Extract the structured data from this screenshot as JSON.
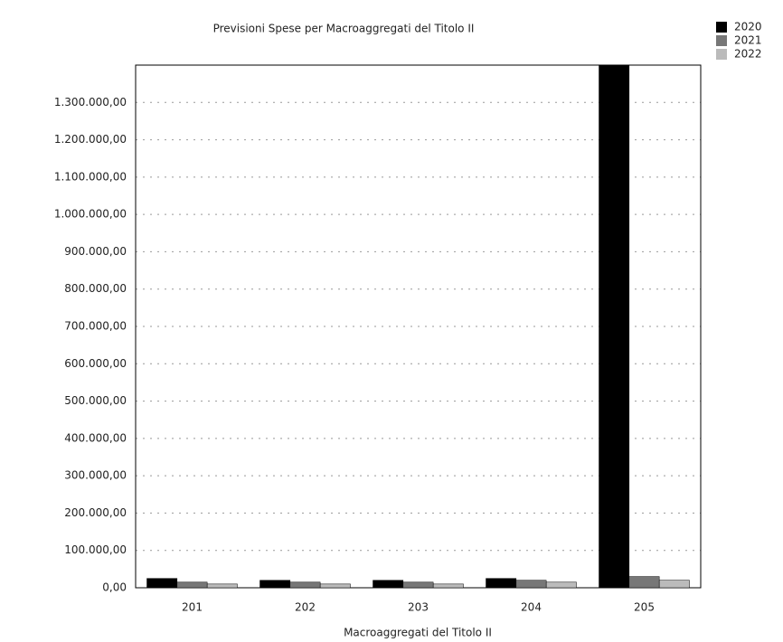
{
  "chart_data": {
    "type": "bar",
    "title": "Previsioni Spese per Macroaggregati del Titolo II",
    "x_label": "Macroaggregati del Titolo II",
    "categories": [
      "201",
      "202",
      "203",
      "204",
      "205"
    ],
    "series": [
      {
        "name": "2020",
        "color": "#000000",
        "values": [
          25000,
          20000,
          20000,
          25000,
          1400000
        ]
      },
      {
        "name": "2021",
        "color": "#777777",
        "values": [
          15000,
          15000,
          15000,
          20000,
          30000
        ]
      },
      {
        "name": "2022",
        "color": "#bbbbbb",
        "values": [
          10000,
          10000,
          10000,
          15000,
          20000
        ]
      }
    ],
    "ylim": [
      0,
      1400000
    ],
    "yticks": [
      {
        "value": 0,
        "label": "0,00"
      },
      {
        "value": 100000,
        "label": "100.000,00"
      },
      {
        "value": 200000,
        "label": "200.000,00"
      },
      {
        "value": 300000,
        "label": "300.000,00"
      },
      {
        "value": 400000,
        "label": "400.000,00"
      },
      {
        "value": 500000,
        "label": "500.000,00"
      },
      {
        "value": 600000,
        "label": "600.000,00"
      },
      {
        "value": 700000,
        "label": "700.000,00"
      },
      {
        "value": 800000,
        "label": "800.000,00"
      },
      {
        "value": 900000,
        "label": "900.000,00"
      },
      {
        "value": 1000000,
        "label": "1.000.000,00"
      },
      {
        "value": 1100000,
        "label": "1.100.000,00"
      },
      {
        "value": 1200000,
        "label": "1.200.000,00"
      },
      {
        "value": 1300000,
        "label": "1.300.000,00"
      }
    ],
    "grid": true
  }
}
